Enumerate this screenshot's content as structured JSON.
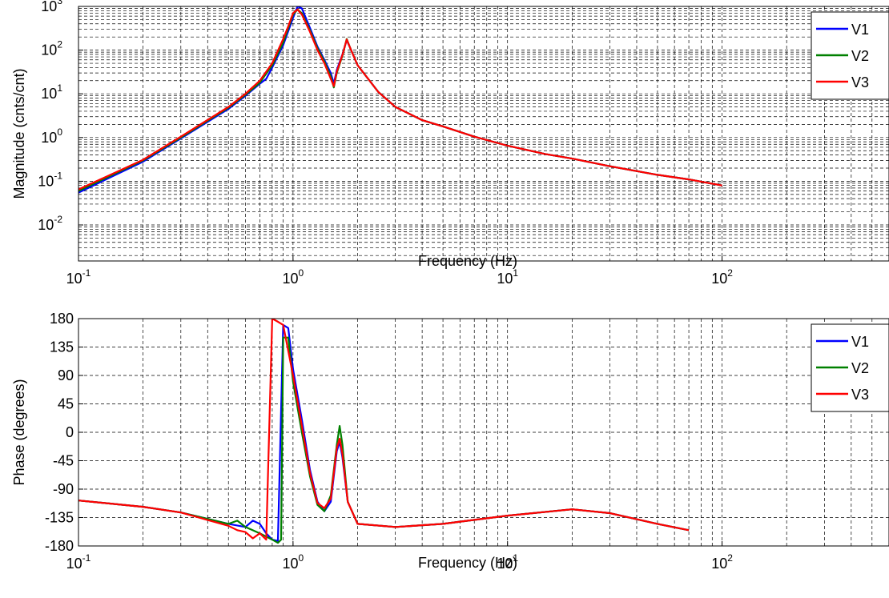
{
  "chart_data": [
    {
      "type": "line",
      "title": "",
      "xlabel": "Frequency (Hz)",
      "ylabel": "Magnitude (cnts/cnt)",
      "xscale": "log",
      "yscale": "log",
      "xlim": [
        0.1,
        600
      ],
      "ylim": [
        0.0015,
        1000
      ],
      "x_ticks": [
        0.1,
        1,
        10,
        100
      ],
      "x_tick_labels": [
        [
          "10",
          "-1"
        ],
        [
          "10",
          "0"
        ],
        [
          "10",
          "1"
        ],
        [
          "10",
          "2"
        ]
      ],
      "y_ticks": [
        0.01,
        0.1,
        1,
        10,
        100,
        1000
      ],
      "y_tick_labels": [
        [
          "10",
          "-2"
        ],
        [
          "10",
          "-1"
        ],
        [
          "10",
          "0"
        ],
        [
          "10",
          "1"
        ],
        [
          "10",
          "2"
        ],
        [
          "10",
          "3"
        ]
      ],
      "grid": true,
      "minor_grid": true,
      "legend_position": "top-right",
      "series": [
        {
          "name": "V1",
          "color": "#0000ff",
          "points": [
            [
              0.1,
              0.055
            ],
            [
              0.2,
              0.28
            ],
            [
              0.3,
              0.95
            ],
            [
              0.5,
              4.5
            ],
            [
              0.6,
              9.0
            ],
            [
              0.7,
              17
            ],
            [
              0.75,
              22
            ],
            [
              0.8,
              40
            ],
            [
              0.9,
              130
            ],
            [
              1.0,
              550
            ],
            [
              1.05,
              1000
            ],
            [
              1.1,
              900
            ],
            [
              1.2,
              320
            ],
            [
              1.3,
              120
            ],
            [
              1.4,
              60
            ],
            [
              1.5,
              30
            ],
            [
              1.55,
              17
            ],
            [
              1.6,
              35
            ],
            [
              1.7,
              80
            ],
            [
              1.78,
              170
            ],
            [
              1.85,
              110
            ],
            [
              2.0,
              45
            ],
            [
              2.5,
              11
            ],
            [
              3,
              5
            ],
            [
              4,
              2.5
            ],
            [
              5,
              1.8
            ],
            [
              7,
              1.05
            ],
            [
              10,
              0.65
            ],
            [
              15,
              0.42
            ],
            [
              20,
              0.33
            ],
            [
              30,
              0.22
            ],
            [
              50,
              0.14
            ],
            [
              70,
              0.11
            ],
            [
              100,
              0.08
            ]
          ]
        },
        {
          "name": "V2",
          "color": "#008000",
          "points": [
            [
              0.1,
              0.06
            ],
            [
              0.2,
              0.3
            ],
            [
              0.3,
              1.0
            ],
            [
              0.5,
              4.8
            ],
            [
              0.6,
              9.5
            ],
            [
              0.7,
              18
            ],
            [
              0.8,
              45
            ],
            [
              0.9,
              150
            ],
            [
              1.0,
              650
            ],
            [
              1.05,
              850
            ],
            [
              1.1,
              700
            ],
            [
              1.2,
              280
            ],
            [
              1.3,
              110
            ],
            [
              1.4,
              55
            ],
            [
              1.5,
              25
            ],
            [
              1.55,
              14
            ],
            [
              1.6,
              30
            ],
            [
              1.7,
              75
            ],
            [
              1.78,
              180
            ],
            [
              1.85,
              110
            ],
            [
              2.0,
              45
            ],
            [
              2.5,
              11
            ],
            [
              3,
              5
            ],
            [
              4,
              2.5
            ],
            [
              5,
              1.8
            ],
            [
              7,
              1.05
            ],
            [
              10,
              0.65
            ],
            [
              15,
              0.42
            ],
            [
              20,
              0.33
            ],
            [
              30,
              0.22
            ],
            [
              50,
              0.14
            ],
            [
              70,
              0.11
            ],
            [
              100,
              0.08
            ]
          ]
        },
        {
          "name": "V3",
          "color": "#ff0000",
          "points": [
            [
              0.1,
              0.065
            ],
            [
              0.2,
              0.31
            ],
            [
              0.3,
              1.05
            ],
            [
              0.5,
              5.0
            ],
            [
              0.6,
              10
            ],
            [
              0.7,
              20
            ],
            [
              0.8,
              50
            ],
            [
              0.9,
              180
            ],
            [
              0.95,
              350
            ],
            [
              1.0,
              700
            ],
            [
              1.05,
              850
            ],
            [
              1.1,
              650
            ],
            [
              1.2,
              260
            ],
            [
              1.3,
              100
            ],
            [
              1.4,
              50
            ],
            [
              1.5,
              22
            ],
            [
              1.55,
              15
            ],
            [
              1.6,
              32
            ],
            [
              1.7,
              78
            ],
            [
              1.78,
              175
            ],
            [
              1.85,
              110
            ],
            [
              2.0,
              45
            ],
            [
              2.5,
              11
            ],
            [
              3,
              5
            ],
            [
              4,
              2.5
            ],
            [
              5,
              1.8
            ],
            [
              7,
              1.05
            ],
            [
              10,
              0.65
            ],
            [
              15,
              0.42
            ],
            [
              20,
              0.33
            ],
            [
              30,
              0.22
            ],
            [
              50,
              0.14
            ],
            [
              70,
              0.11
            ],
            [
              100,
              0.08
            ]
          ]
        }
      ]
    },
    {
      "type": "line",
      "title": "",
      "xlabel": "Frequency (Hz)",
      "ylabel": "Phase (degrees)",
      "xscale": "log",
      "yscale": "linear",
      "xlim": [
        0.1,
        600
      ],
      "ylim": [
        -180,
        180
      ],
      "x_ticks": [
        0.1,
        1,
        10,
        100
      ],
      "x_tick_labels": [
        [
          "10",
          "-1"
        ],
        [
          "10",
          "0"
        ],
        [
          "10",
          "1"
        ],
        [
          "10",
          "2"
        ]
      ],
      "y_ticks": [
        -180,
        -135,
        -90,
        -45,
        0,
        45,
        90,
        135,
        180
      ],
      "y_tick_labels": [
        "-180",
        "-135",
        "-90",
        "-45",
        "0",
        "45",
        "90",
        "135",
        "180"
      ],
      "grid": true,
      "legend_position": "top-right",
      "series": [
        {
          "name": "V1",
          "color": "#0000ff",
          "points": [
            [
              0.1,
              -108
            ],
            [
              0.2,
              -118
            ],
            [
              0.3,
              -127
            ],
            [
              0.5,
              -145
            ],
            [
              0.6,
              -150
            ],
            [
              0.65,
              -140
            ],
            [
              0.7,
              -145
            ],
            [
              0.75,
              -160
            ],
            [
              0.8,
              -170
            ],
            [
              0.85,
              -172
            ],
            [
              0.9,
              170
            ],
            [
              0.95,
              165
            ],
            [
              1.0,
              100
            ],
            [
              1.1,
              20
            ],
            [
              1.2,
              -60
            ],
            [
              1.3,
              -110
            ],
            [
              1.4,
              -125
            ],
            [
              1.5,
              -110
            ],
            [
              1.6,
              -30
            ],
            [
              1.65,
              -15
            ],
            [
              1.7,
              -40
            ],
            [
              1.8,
              -110
            ],
            [
              2.0,
              -145
            ],
            [
              3,
              -150
            ],
            [
              5,
              -145
            ],
            [
              10,
              -132
            ],
            [
              20,
              -122
            ],
            [
              30,
              -128
            ],
            [
              50,
              -145
            ],
            [
              70,
              -155
            ]
          ]
        },
        {
          "name": "V2",
          "color": "#008000",
          "points": [
            [
              0.1,
              -108
            ],
            [
              0.2,
              -118
            ],
            [
              0.3,
              -127
            ],
            [
              0.5,
              -145
            ],
            [
              0.55,
              -140
            ],
            [
              0.6,
              -150
            ],
            [
              0.7,
              -160
            ],
            [
              0.8,
              -170
            ],
            [
              0.85,
              -175
            ],
            [
              0.88,
              -170
            ],
            [
              0.9,
              150
            ],
            [
              0.95,
              150
            ],
            [
              1.0,
              80
            ],
            [
              1.1,
              0
            ],
            [
              1.2,
              -70
            ],
            [
              1.3,
              -115
            ],
            [
              1.4,
              -125
            ],
            [
              1.5,
              -100
            ],
            [
              1.6,
              -20
            ],
            [
              1.65,
              10
            ],
            [
              1.7,
              -20
            ],
            [
              1.8,
              -110
            ],
            [
              2.0,
              -145
            ],
            [
              3,
              -150
            ],
            [
              5,
              -145
            ],
            [
              10,
              -132
            ],
            [
              20,
              -122
            ],
            [
              30,
              -128
            ],
            [
              50,
              -145
            ],
            [
              70,
              -155
            ]
          ]
        },
        {
          "name": "V3",
          "color": "#ff0000",
          "points": [
            [
              0.1,
              -108
            ],
            [
              0.2,
              -118
            ],
            [
              0.3,
              -127
            ],
            [
              0.5,
              -148
            ],
            [
              0.55,
              -155
            ],
            [
              0.6,
              -158
            ],
            [
              0.65,
              -168
            ],
            [
              0.7,
              -160
            ],
            [
              0.75,
              -170
            ],
            [
              0.8,
              180
            ],
            [
              0.85,
              175
            ],
            [
              0.9,
              170
            ],
            [
              1.0,
              90
            ],
            [
              1.1,
              10
            ],
            [
              1.2,
              -65
            ],
            [
              1.3,
              -112
            ],
            [
              1.4,
              -120
            ],
            [
              1.5,
              -105
            ],
            [
              1.6,
              -25
            ],
            [
              1.65,
              -10
            ],
            [
              1.7,
              -35
            ],
            [
              1.8,
              -110
            ],
            [
              2.0,
              -145
            ],
            [
              3,
              -150
            ],
            [
              5,
              -145
            ],
            [
              10,
              -132
            ],
            [
              20,
              -122
            ],
            [
              30,
              -128
            ],
            [
              50,
              -145
            ],
            [
              70,
              -155
            ]
          ]
        }
      ]
    }
  ]
}
